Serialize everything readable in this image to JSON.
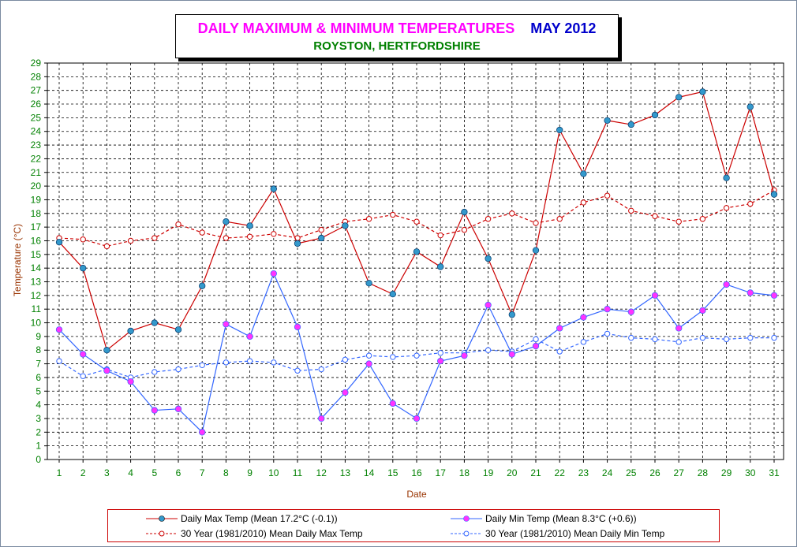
{
  "title": {
    "main": "DAILY MAXIMUM &  MINIMUM  TEMPERATURES",
    "month": "MAY 2012",
    "subtitle": "ROYSTON, HERTFORDSHIRE"
  },
  "colors": {
    "max": "#cc0000",
    "min": "#3366ff",
    "max_marker": "#3399cc",
    "min_marker": "#ff33ff",
    "axis_text_x": "#008000",
    "axis_label": "#993300",
    "grid": "#000000"
  },
  "chart_data": {
    "type": "line",
    "xlabel": "Date",
    "ylabel": "Temperature (°C)",
    "xlim": [
      1,
      31
    ],
    "ylim": [
      0,
      29
    ],
    "grid": true,
    "legend_position": "bottom",
    "x": [
      1,
      2,
      3,
      4,
      5,
      6,
      7,
      8,
      9,
      10,
      11,
      12,
      13,
      14,
      15,
      16,
      17,
      18,
      19,
      20,
      21,
      22,
      23,
      24,
      25,
      26,
      27,
      28,
      29,
      30,
      31
    ],
    "series": [
      {
        "name": "Daily Max Temp (Mean 17.2°C (-0.1))",
        "style": "solid",
        "color": "#cc0000",
        "marker": "#3399cc",
        "values": [
          15.9,
          14.0,
          8.0,
          9.4,
          10.0,
          9.5,
          12.7,
          17.4,
          17.1,
          19.8,
          15.8,
          16.2,
          17.1,
          12.9,
          12.1,
          15.2,
          14.1,
          18.1,
          14.7,
          10.6,
          15.3,
          24.1,
          20.9,
          24.8,
          24.5,
          25.2,
          26.5,
          26.9,
          20.6,
          25.8,
          19.4
        ]
      },
      {
        "name": "Daily Min Temp (Mean 8.3°C (+0.6))",
        "style": "solid",
        "color": "#3366ff",
        "marker": "#ff33ff",
        "values": [
          9.5,
          7.7,
          6.5,
          5.7,
          3.6,
          3.7,
          2.0,
          9.9,
          9.0,
          13.6,
          9.7,
          3.0,
          4.9,
          7.0,
          4.1,
          3.0,
          7.2,
          7.6,
          11.3,
          7.7,
          8.3,
          9.6,
          10.4,
          11.0,
          10.8,
          12.0,
          9.6,
          10.9,
          12.8,
          12.2,
          12.0
        ]
      },
      {
        "name": "30 Year (1981/2010) Mean Daily Max Temp",
        "style": "dashed",
        "color": "#cc0000",
        "marker": "hollow",
        "values": [
          16.2,
          16.1,
          15.6,
          16.0,
          16.2,
          17.2,
          16.6,
          16.2,
          16.3,
          16.5,
          16.2,
          16.8,
          17.4,
          17.6,
          17.9,
          17.4,
          16.4,
          16.8,
          17.6,
          18.0,
          17.3,
          17.6,
          18.8,
          19.3,
          18.2,
          17.8,
          17.4,
          17.6,
          18.4,
          18.7,
          19.7
        ]
      },
      {
        "name": "30 Year (1981/2010) Mean Daily Min Temp",
        "style": "dashed",
        "color": "#3366ff",
        "marker": "hollow",
        "values": [
          7.2,
          6.1,
          6.6,
          6.0,
          6.4,
          6.6,
          6.9,
          7.1,
          7.2,
          7.1,
          6.5,
          6.6,
          7.3,
          7.6,
          7.5,
          7.6,
          7.8,
          7.8,
          8.0,
          7.9,
          8.8,
          7.9,
          8.6,
          9.2,
          8.9,
          8.8,
          8.6,
          8.9,
          8.8,
          8.9,
          8.9
        ]
      }
    ]
  }
}
